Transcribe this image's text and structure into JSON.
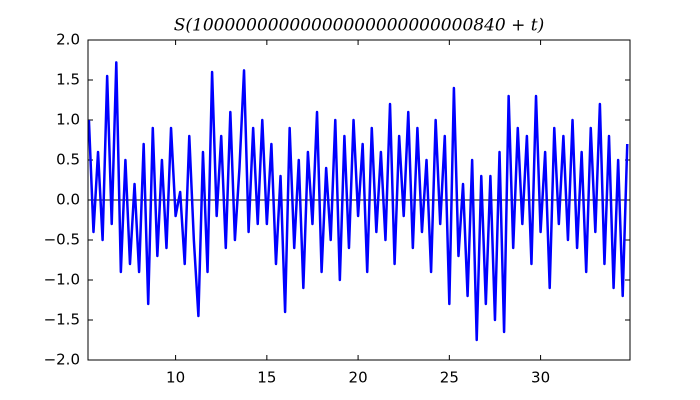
{
  "chart_data": {
    "type": "line",
    "title": "S(10000000000000000000000000840 + t)",
    "x": [
      5.25,
      5.5,
      5.75,
      6,
      6.25,
      6.5,
      6.75,
      7,
      7.25,
      7.5,
      7.75,
      8,
      8.25,
      8.5,
      8.75,
      9,
      9.25,
      9.5,
      9.75,
      10,
      10.25,
      10.5,
      10.75,
      11,
      11.25,
      11.5,
      11.75,
      12,
      12.25,
      12.5,
      12.75,
      13,
      13.25,
      13.5,
      13.75,
      14,
      14.25,
      14.5,
      14.75,
      15,
      15.25,
      15.5,
      15.75,
      16,
      16.25,
      16.5,
      16.75,
      17,
      17.25,
      17.5,
      17.75,
      18,
      18.25,
      18.5,
      18.75,
      19,
      19.25,
      19.5,
      19.75,
      20,
      20.25,
      20.5,
      20.75,
      21,
      21.25,
      21.5,
      21.75,
      22,
      22.25,
      22.5,
      22.75,
      23,
      23.25,
      23.5,
      23.75,
      24,
      24.25,
      24.5,
      24.75,
      25,
      25.25,
      25.5,
      25.75,
      26,
      26.25,
      26.5,
      26.75,
      27,
      27.25,
      27.5,
      27.75,
      28,
      28.25,
      28.5,
      28.75,
      29,
      29.25,
      29.5,
      29.75,
      30,
      30.25,
      30.5,
      30.75,
      31,
      31.25,
      31.5,
      31.75,
      32,
      32.25,
      32.5,
      32.75,
      33,
      33.25,
      33.5,
      33.75,
      34,
      34.25,
      34.5,
      34.75
    ],
    "series": [
      {
        "color": "#0000ff",
        "values": [
          1.0,
          -0.4,
          0.6,
          -0.5,
          1.55,
          -0.3,
          1.72,
          -0.9,
          0.5,
          -0.8,
          0.2,
          -0.9,
          0.7,
          -1.3,
          0.9,
          -0.7,
          0.5,
          -0.6,
          0.9,
          -0.2,
          0.1,
          -0.8,
          0.8,
          -0.5,
          -1.45,
          0.6,
          -0.9,
          1.6,
          -0.2,
          0.8,
          -0.6,
          1.1,
          -0.5,
          0.4,
          1.62,
          -0.4,
          0.9,
          -0.3,
          1.0,
          -0.3,
          0.7,
          -0.8,
          0.3,
          -1.4,
          0.9,
          -0.6,
          0.5,
          -1.1,
          0.6,
          -0.3,
          1.1,
          -0.9,
          0.4,
          -0.5,
          1.0,
          -1.0,
          0.8,
          -0.6,
          1.0,
          -0.2,
          0.7,
          -0.9,
          0.9,
          -0.4,
          0.6,
          -0.5,
          1.2,
          -0.8,
          0.8,
          -0.2,
          1.1,
          -0.6,
          0.9,
          -0.4,
          0.5,
          -0.9,
          1.0,
          -0.3,
          0.8,
          -1.3,
          1.4,
          -0.7,
          0.2,
          -1.2,
          0.5,
          -1.75,
          0.3,
          -1.3,
          0.3,
          -1.5,
          0.6,
          -1.65,
          1.3,
          -0.6,
          0.9,
          -0.3,
          0.8,
          -0.8,
          1.3,
          -0.4,
          0.6,
          -1.1,
          0.9,
          -0.3,
          0.8,
          -0.5,
          1.0,
          -0.6,
          0.6,
          -0.9,
          0.9,
          -0.4,
          1.2,
          -0.8,
          0.8,
          -1.1,
          0.5,
          -1.2,
          0.7
        ]
      }
    ],
    "reference_line": 0,
    "xlim": [
      5.2,
      34.9
    ],
    "ylim": [
      -2,
      2
    ],
    "xticks": [
      10,
      15,
      20,
      25,
      30
    ],
    "yticks": [
      {
        "value": -2,
        "label": "−2.0"
      },
      {
        "value": -1.5,
        "label": "−1.5"
      },
      {
        "value": -1,
        "label": "−1.0"
      },
      {
        "value": -0.5,
        "label": "−0.5"
      },
      {
        "value": 0,
        "label": "0.0"
      },
      {
        "value": 0.5,
        "label": "0.5"
      },
      {
        "value": 1,
        "label": "1.0"
      },
      {
        "value": 1.5,
        "label": "1.5"
      },
      {
        "value": 2,
        "label": "2.0"
      }
    ]
  }
}
